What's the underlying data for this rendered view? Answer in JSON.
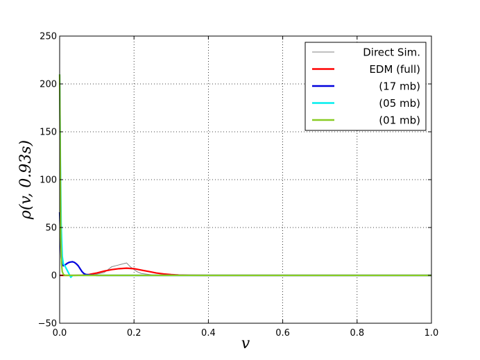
{
  "chart_data": {
    "type": "line",
    "title": "",
    "xlabel": "v",
    "ylabel": "ρ(v, 0.93s)",
    "xlim": [
      0.0,
      1.0
    ],
    "ylim": [
      -50,
      250
    ],
    "xticks": [
      0.0,
      0.2,
      0.4,
      0.6,
      0.8,
      1.0
    ],
    "xtick_labels": [
      "0.0",
      "0.2",
      "0.4",
      "0.6",
      "0.8",
      "1.0"
    ],
    "yticks": [
      -50,
      0,
      50,
      100,
      150,
      200,
      250
    ],
    "ytick_labels": [
      "−50",
      "0",
      "50",
      "100",
      "150",
      "200",
      "250"
    ],
    "grid": true,
    "legend_position": "top-right",
    "series": [
      {
        "name": "Direct Sim.",
        "color": "#808080",
        "x": [
          0.0,
          0.01,
          0.03,
          0.06,
          0.09,
          0.12,
          0.13,
          0.14,
          0.15,
          0.16,
          0.165,
          0.17,
          0.175,
          0.18,
          0.185,
          0.19,
          0.2,
          0.21,
          0.22,
          0.25,
          0.3,
          0.35,
          1.0
        ],
        "y": [
          0,
          0,
          0,
          0,
          0.5,
          3,
          6,
          9,
          10,
          11,
          11.5,
          12,
          12.5,
          13,
          11,
          9,
          6,
          3.5,
          2,
          0.5,
          0,
          0,
          0
        ]
      },
      {
        "name": "EDM (full)",
        "color": "#ff0000",
        "x": [
          0.0,
          0.04,
          0.06,
          0.08,
          0.1,
          0.12,
          0.14,
          0.16,
          0.18,
          0.2,
          0.22,
          0.24,
          0.26,
          0.28,
          0.3,
          0.32,
          0.35,
          0.4,
          1.0
        ],
        "y": [
          0,
          0,
          0.2,
          1,
          2.5,
          4.5,
          6,
          7,
          7.5,
          7,
          5.5,
          4,
          2.5,
          1.5,
          0.8,
          0.4,
          0.1,
          0,
          0
        ]
      },
      {
        "name": "(17 mb)",
        "color": "#0000dd",
        "x": [
          0.0,
          0.002,
          0.004,
          0.006,
          0.01,
          0.015,
          0.02,
          0.025,
          0.03,
          0.035,
          0.04,
          0.045,
          0.05,
          0.055,
          0.06,
          0.065,
          0.07,
          0.08,
          0.1,
          1.0
        ],
        "y": [
          66,
          40,
          20,
          12,
          10,
          11,
          12.5,
          13.5,
          14,
          14.2,
          13.5,
          12,
          10,
          7,
          4,
          2,
          1,
          0.5,
          0,
          0
        ]
      },
      {
        "name": "(05 mb)",
        "color": "#00eeee",
        "x": [
          0.0,
          0.002,
          0.004,
          0.007,
          0.01,
          0.014,
          0.018,
          0.022,
          0.026,
          0.03,
          0.035,
          1.0
        ],
        "y": [
          210,
          120,
          55,
          20,
          12,
          10,
          7,
          4,
          1,
          -2,
          0,
          0
        ]
      },
      {
        "name": "(01 mb)",
        "color": "#88cc22",
        "x": [
          0.0,
          0.002,
          0.003,
          0.005,
          0.007,
          0.01,
          0.015,
          1.0
        ],
        "y": [
          210,
          100,
          40,
          12,
          4,
          1,
          0,
          0
        ]
      }
    ]
  }
}
